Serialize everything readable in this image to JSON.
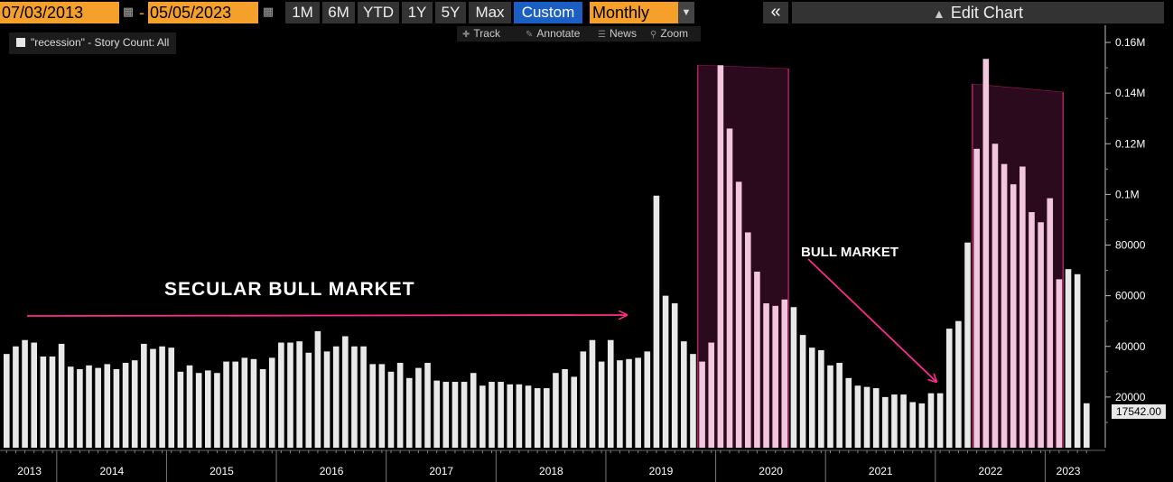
{
  "toolbar": {
    "start_date": "07/03/2013",
    "date_separator": "-",
    "end_date": "05/05/2023",
    "ranges": [
      "1M",
      "6M",
      "YTD",
      "1Y",
      "5Y",
      "Max",
      "Custom"
    ],
    "active_range": "Custom",
    "period": "Monthly",
    "collapse_label": "«",
    "edit_chart_label": "Edit Chart"
  },
  "tools": [
    {
      "icon": "crosshair-icon",
      "label": "Track"
    },
    {
      "icon": "pencil-icon",
      "label": "Annotate"
    },
    {
      "icon": "news-icon",
      "label": "News"
    },
    {
      "icon": "magnifier-icon",
      "label": "Zoom"
    }
  ],
  "legend": {
    "label": "\"recession\" - Story Count: All",
    "color": "#e8e8e8"
  },
  "colors": {
    "bar": "#e8e8e8",
    "highlight_bar": "#f2c6dc",
    "shade": "#2a0a1c",
    "annotation": "#ff2a8a",
    "axis": "#ffffff",
    "toolbar_accent": "#f4a02a",
    "active_button": "#1b5fc4"
  },
  "annotations": {
    "secular_bull": "SECULAR BULL MARKET",
    "bull": "BULL MARKET"
  },
  "last_value_label": "17542.00",
  "chart_data": {
    "type": "bar",
    "title": "",
    "series": [
      {
        "name": "\"recession\" - Story Count: All"
      }
    ],
    "ylim": [
      0,
      165000
    ],
    "y_ticks": [
      20000,
      40000,
      60000,
      80000,
      100000,
      120000,
      140000,
      160000
    ],
    "y_tick_labels": [
      "20000",
      "40000",
      "60000",
      "80000",
      "0.1M",
      "0.12M",
      "0.14M",
      "0.16M"
    ],
    "y_axis_side": "right",
    "grid": false,
    "year_labels": [
      "2013",
      "2014",
      "2015",
      "2016",
      "2017",
      "2018",
      "2019",
      "2020",
      "2021",
      "2022",
      "2023"
    ],
    "year_start_index": [
      0,
      6,
      18,
      30,
      42,
      54,
      66,
      78,
      90,
      102,
      114
    ],
    "shaded_ranges": [
      [
        76,
        85
      ],
      [
        106,
        115
      ]
    ],
    "values": [
      37000,
      40000,
      42500,
      41500,
      36000,
      36000,
      41000,
      32000,
      31000,
      32500,
      31500,
      33000,
      31000,
      33500,
      34500,
      41000,
      39000,
      40000,
      39500,
      30000,
      32500,
      29500,
      30500,
      29500,
      34000,
      34000,
      35500,
      35000,
      31000,
      35500,
      41500,
      41500,
      42000,
      37500,
      46000,
      38000,
      40000,
      44000,
      40000,
      40000,
      33000,
      33000,
      30000,
      33500,
      27500,
      31500,
      33500,
      26500,
      26000,
      26000,
      26000,
      29500,
      24500,
      26000,
      26000,
      25000,
      25000,
      24500,
      23500,
      23500,
      29500,
      31000,
      28000,
      38000,
      42500,
      34000,
      42500,
      34500,
      35000,
      35500,
      38000,
      99500,
      60000,
      57000,
      42000,
      37000,
      34000,
      41500,
      151000,
      126000,
      105000,
      85000,
      69500,
      57000,
      56000,
      58500,
      55500,
      44500,
      39500,
      38500,
      32500,
      33500,
      27500,
      24500,
      24000,
      23500,
      20000,
      21000,
      21000,
      18000,
      17500,
      21500,
      21500,
      47000,
      50000,
      81000,
      118000,
      153500,
      120000,
      112000,
      104000,
      111000,
      93000,
      89000,
      98500,
      66500,
      70500,
      68500,
      17542
    ]
  }
}
